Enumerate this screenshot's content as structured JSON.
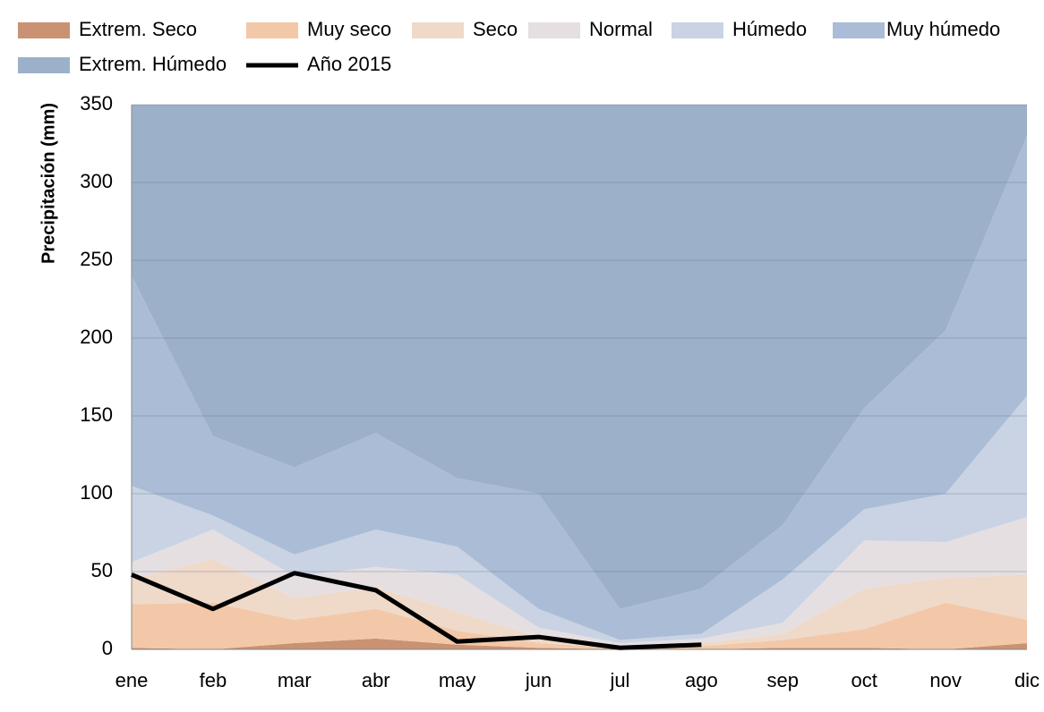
{
  "chart_data": {
    "type": "stacked_area",
    "y_label": "Precipitación (mm)",
    "categories": [
      "ene",
      "feb",
      "mar",
      "abr",
      "may",
      "jun",
      "jul",
      "ago",
      "sep",
      "oct",
      "nov",
      "dic"
    ],
    "ylim": [
      0,
      350
    ],
    "yticks": [
      0,
      50,
      100,
      150,
      200,
      250,
      300,
      350
    ],
    "grid": true,
    "series": [
      {
        "name": "Extrem. Seco",
        "color": "#c99272",
        "values": [
          1,
          0,
          4,
          7,
          3,
          1,
          0,
          0,
          1,
          1,
          0,
          4
        ]
      },
      {
        "name": "Muy seco",
        "color": "#f2c8a8",
        "values": [
          28,
          30,
          15,
          19,
          9,
          3,
          1,
          2,
          5,
          12,
          30,
          15
        ]
      },
      {
        "name": "Seco",
        "color": "#efd9c9",
        "values": [
          16,
          28,
          14,
          14,
          12,
          4,
          1,
          2,
          4,
          26,
          16,
          29
        ]
      },
      {
        "name": "Normal",
        "color": "#e5dfe1",
        "values": [
          11,
          19,
          14,
          13,
          24,
          6,
          2,
          3,
          7,
          31,
          23,
          37
        ]
      },
      {
        "name": "Húmedo",
        "color": "#c9d3e4",
        "values": [
          49,
          9,
          14,
          24,
          18,
          12,
          2,
          3,
          28,
          20,
          31,
          78
        ]
      },
      {
        "name": "Muy húmedo",
        "color": "#abbdd6",
        "values": [
          135,
          51,
          56,
          62,
          44,
          74,
          20,
          29,
          35,
          65,
          105,
          167
        ]
      },
      {
        "name": "Extrem. Húmedo",
        "color": "#9cb0c9",
        "values": [
          110,
          213,
          233,
          211,
          240,
          250,
          324,
          311,
          270,
          195,
          145,
          20
        ]
      }
    ],
    "line": {
      "name": "Año 2015",
      "color": "#000000",
      "values": [
        48,
        26,
        49,
        38,
        5,
        8,
        1,
        3,
        null,
        null,
        null,
        null
      ]
    }
  }
}
